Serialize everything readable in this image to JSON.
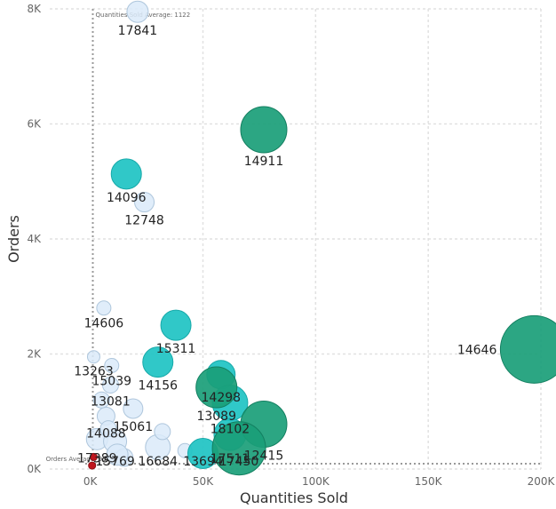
{
  "chart_data": {
    "type": "scatter",
    "title": "",
    "xlabel": "Quantities Sold",
    "ylabel": "Orders",
    "xlim": [
      -18000,
      200000
    ],
    "ylim": [
      0,
      8000
    ],
    "x_ticks": [
      {
        "value": 0,
        "label": "0K"
      },
      {
        "value": 50000,
        "label": "50K"
      },
      {
        "value": 100000,
        "label": "100K"
      },
      {
        "value": 150000,
        "label": "150K"
      },
      {
        "value": 200000,
        "label": "200K"
      }
    ],
    "y_ticks": [
      {
        "value": 0,
        "label": "0K"
      },
      {
        "value": 2000,
        "label": "2K"
      },
      {
        "value": 4000,
        "label": "4K"
      },
      {
        "value": 6000,
        "label": "6K"
      },
      {
        "value": 8000,
        "label": "8K"
      }
    ],
    "grid": true,
    "reference_lines": [
      {
        "axis": "x",
        "value": 1122,
        "label": "Quantities Sold Average: 1122"
      },
      {
        "axis": "y",
        "value": 93,
        "label": "Orders Average: 93"
      }
    ],
    "colors": {
      "light": "#dbeaf9",
      "light_stroke": "#aec6dc",
      "teal": "#1ec3c3",
      "green": "#1a9e78",
      "red": "#c0161e"
    },
    "points": [
      {
        "label": "17841",
        "x": 21000,
        "y": 7950,
        "size": 12,
        "tone": "light"
      },
      {
        "label": "14911",
        "x": 77000,
        "y": 5900,
        "size": 26,
        "tone": "green"
      },
      {
        "label": "14096",
        "x": 16000,
        "y": 5130,
        "size": 17,
        "tone": "teal"
      },
      {
        "label": "12748",
        "x": 24000,
        "y": 4640,
        "size": 11,
        "tone": "light"
      },
      {
        "label": "14606",
        "x": 6000,
        "y": 2800,
        "size": 8,
        "tone": "light"
      },
      {
        "label": "15311",
        "x": 38000,
        "y": 2500,
        "size": 17,
        "tone": "teal"
      },
      {
        "label": "14646",
        "x": 197000,
        "y": 2080,
        "size": 38,
        "tone": "green"
      },
      {
        "label": "13263",
        "x": 1500,
        "y": 1950,
        "size": 7,
        "tone": "light"
      },
      {
        "label": "15039",
        "x": 9500,
        "y": 1800,
        "size": 8,
        "tone": "light"
      },
      {
        "label": "14156",
        "x": 30000,
        "y": 1860,
        "size": 17,
        "tone": "teal"
      },
      {
        "label": "14298",
        "x": 58000,
        "y": 1640,
        "size": 16,
        "tone": "teal"
      },
      {
        "label": "13089",
        "x": 56000,
        "y": 1420,
        "size": 23,
        "tone": "green"
      },
      {
        "label": "13081",
        "x": 9000,
        "y": 1460,
        "size": 9,
        "tone": "light"
      },
      {
        "label": "18102",
        "x": 62000,
        "y": 1150,
        "size": 20,
        "tone": "teal"
      },
      {
        "label": "15061",
        "x": 19000,
        "y": 1050,
        "size": 11,
        "tone": "light"
      },
      {
        "label": "12415",
        "x": 77000,
        "y": 780,
        "size": 26,
        "tone": "green"
      },
      {
        "label": "14088",
        "x": 7000,
        "y": 920,
        "size": 10,
        "tone": "light"
      },
      {
        "label": "17511",
        "x": 62000,
        "y": 600,
        "size": 18,
        "tone": "teal"
      },
      {
        "label": "17389",
        "x": 3000,
        "y": 520,
        "size": 12,
        "tone": "light"
      },
      {
        "label": "15769",
        "x": 11000,
        "y": 480,
        "size": 13,
        "tone": "light"
      },
      {
        "label": "17450",
        "x": 66000,
        "y": 360,
        "size": 30,
        "tone": "green"
      },
      {
        "label": "16684",
        "x": 30000,
        "y": 380,
        "size": 14,
        "tone": "light"
      },
      {
        "label": "13694",
        "x": 50000,
        "y": 270,
        "size": 17,
        "tone": "teal"
      },
      {
        "label": "",
        "x": 1500,
        "y": 210,
        "size": 4,
        "tone": "red"
      },
      {
        "label": "",
        "x": 800,
        "y": 60,
        "size": 4,
        "tone": "red"
      },
      {
        "label": "",
        "x": 15000,
        "y": 200,
        "size": 10,
        "tone": "light"
      },
      {
        "label": "",
        "x": 5000,
        "y": 1200,
        "size": 9,
        "tone": "light"
      },
      {
        "label": "",
        "x": 12000,
        "y": 250,
        "size": 12,
        "tone": "light"
      },
      {
        "label": "",
        "x": 32000,
        "y": 650,
        "size": 9,
        "tone": "light"
      },
      {
        "label": "",
        "x": 8000,
        "y": 700,
        "size": 9,
        "tone": "light"
      },
      {
        "label": "",
        "x": 42000,
        "y": 320,
        "size": 8,
        "tone": "light"
      }
    ]
  }
}
